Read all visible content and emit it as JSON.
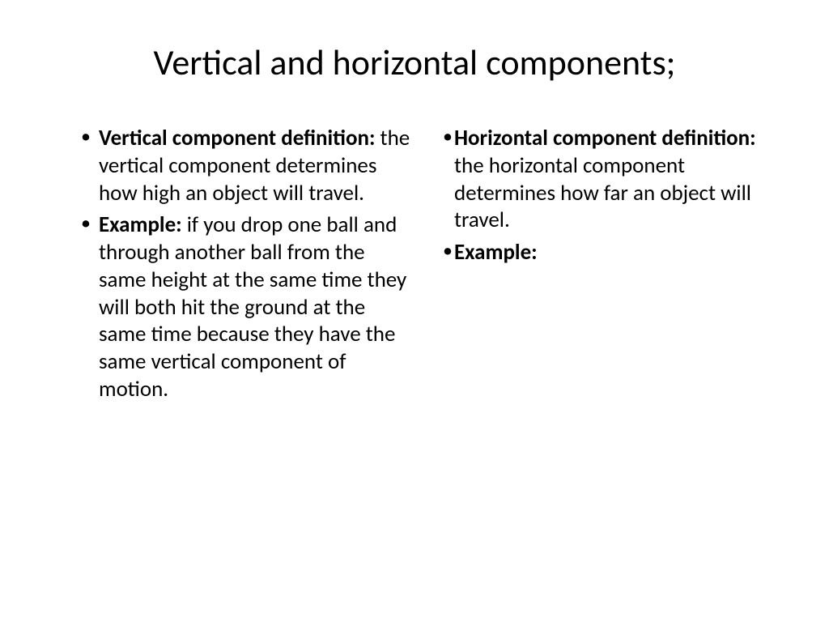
{
  "title": "Vertical and horizontal components;",
  "left": {
    "item1_term": "Vertical component definition:",
    "item1_body": " the vertical component determines how high an object will travel.",
    "item2_term": "Example:",
    "item2_body": " if you drop one ball and through another ball from the same height at the same time they will both hit the ground at the same time because they have the same vertical component of motion."
  },
  "right": {
    "item1_term": "Horizontal component definition:",
    "item1_body": " the horizontal component determines how far an object will travel.",
    "item2_term": "Example:",
    "item2_body": ""
  }
}
